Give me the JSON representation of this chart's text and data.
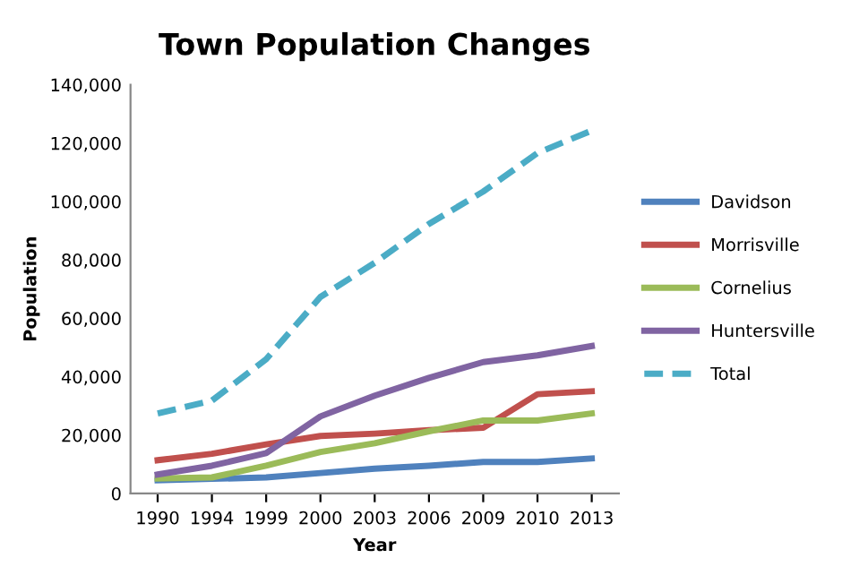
{
  "chart_data": {
    "type": "line",
    "title": "Town Population Changes",
    "xlabel": "Year",
    "ylabel": "Population",
    "categories": [
      "1990",
      "1994",
      "1999",
      "2000",
      "2003",
      "2006",
      "2009",
      "2010",
      "2013"
    ],
    "series": [
      {
        "name": "Davidson",
        "color": "#4f81bd",
        "values": [
          4500,
          5000,
          5500,
          7000,
          8500,
          9500,
          10800,
          10800,
          12000
        ]
      },
      {
        "name": "Morrisville",
        "color": "#c0504d",
        "values": [
          11400,
          13600,
          16800,
          19700,
          20500,
          21700,
          22500,
          34000,
          35000
        ]
      },
      {
        "name": "Cornelius",
        "color": "#9bbb59",
        "values": [
          5100,
          5500,
          9500,
          14200,
          17200,
          21300,
          25000,
          25000,
          27400
        ]
      },
      {
        "name": "Huntersville",
        "color": "#8064a2",
        "values": [
          6500,
          9500,
          13800,
          26400,
          33500,
          39600,
          45000,
          47300,
          50500
        ]
      },
      {
        "name": "Total",
        "color": "#4bacc6",
        "line_style": "dashed",
        "values": [
          27400,
          31800,
          46000,
          67300,
          79000,
          92300,
          103400,
          116600,
          124300
        ]
      }
    ],
    "ylim": [
      0,
      140000
    ],
    "yticks": [
      {
        "value": 0,
        "label": "0"
      },
      {
        "value": 20000,
        "label": "20,000"
      },
      {
        "value": 40000,
        "label": "40,000"
      },
      {
        "value": 60000,
        "label": "60,000"
      },
      {
        "value": 80000,
        "label": "80,000"
      },
      {
        "value": 100000,
        "label": "100,000"
      },
      {
        "value": 120000,
        "label": "120,000"
      },
      {
        "value": 140000,
        "label": "140,000"
      }
    ],
    "grid": false,
    "legend": "right",
    "marker": "none",
    "line_style": "solid"
  }
}
